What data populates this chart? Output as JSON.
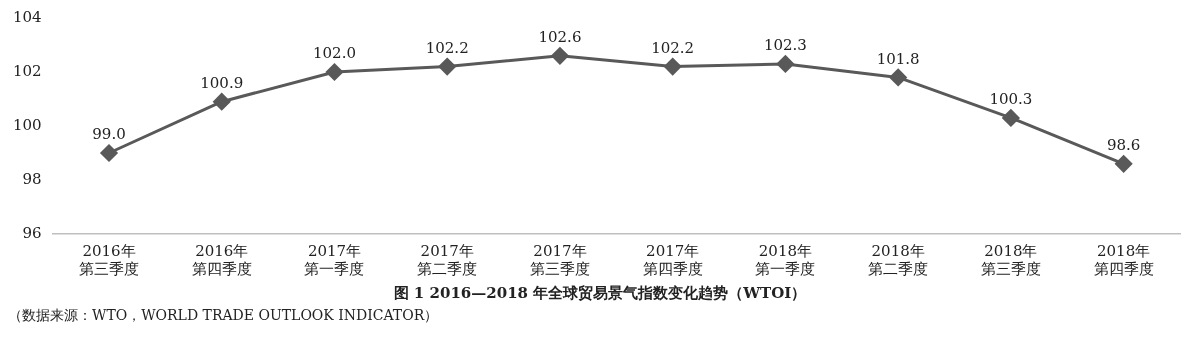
{
  "chart_data": {
    "type": "line",
    "title": "图 1 2016—2018 年全球贸易景气指数变化趋势（WTOI）",
    "annotations": [
      "（数据来源：WTO，WORLD TRADE  OUTLOOK INDICATOR）"
    ],
    "categories": [
      "2016年第三季度",
      "2016年第四季度",
      "2017年第一季度",
      "2017年第二季度",
      "2017年第三季度",
      "2017年第四季度",
      "2018年第一季度",
      "2018年第二季度",
      "2018年第三季度",
      "2018年第四季度"
    ],
    "values": [
      99.0,
      100.9,
      102.0,
      102.2,
      102.6,
      102.2,
      102.3,
      101.8,
      100.3,
      98.6
    ],
    "color": "#595959",
    "ylim": [
      96,
      104
    ],
    "yticks": [
      96,
      98,
      100,
      102,
      104
    ],
    "value_labels": [
      "99.0",
      "100.9",
      "102.0",
      "102.2",
      "102.6",
      "102.2",
      "102.3",
      "101.8",
      "100.3",
      "98.6"
    ],
    "marker": "diamond",
    "grid": false
  }
}
